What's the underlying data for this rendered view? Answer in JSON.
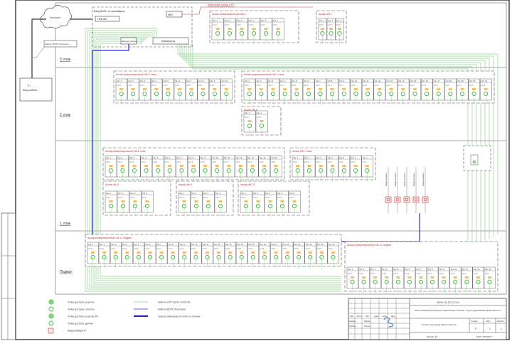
{
  "floors": [
    "3 этаж",
    "2 этаж",
    "1 этаж",
    "Подвал"
  ],
  "internet": "Интернет",
  "substation": {
    "title": "ТП",
    "subtitle": "Ввод кабеля"
  },
  "cable_note": "Кабель ВОЛС 8 волокон",
  "input_box": {
    "title": "Ввод ВОЛС от провайдера",
    "odf": "ОКБ-8М",
    "router": "Маршрутизатор",
    "switch": "Коммутатор",
    "ups": "ИБП"
  },
  "top_note": "Кабельная трасса к РУ",
  "racks": [
    {
      "title": "Шкаф коммутационный ШК-1",
      "ports": 6
    },
    {
      "title": "Шкаф ШК-2",
      "ports": 3
    },
    {
      "title": "Шкаф коммутационный ШК-3 этаж",
      "ports": 10
    },
    {
      "title": "Шкаф коммутационный ШК-4 этаж",
      "ports": 21
    },
    {
      "title": "Шкаф ШК-5",
      "ports": 2
    },
    {
      "title": "Шкаф коммутационный ШК-6 этаж",
      "ports": 15
    },
    {
      "title": "Шкаф ШК-7 этаж",
      "ports": 7
    },
    {
      "title": "Шкаф ШК-8",
      "ports": 4
    },
    {
      "title": "Шкаф ШК-9",
      "ports": 4
    },
    {
      "title": "Шкаф ШК-10",
      "ports": 5
    },
    {
      "title": "Шкаф коммутационный ШК-11 подвал",
      "ports": 22
    },
    {
      "title": "Шкаф коммутационный ШК-12 подвал",
      "ports": 13
    }
  ],
  "port_label": "Сет.",
  "port_value": "2x2,5",
  "cameras": {
    "count": 5,
    "label": "Видеокамера"
  },
  "legend": [
    {
      "icon": "socket-icon",
      "text": "Точка доступа, розетка"
    },
    {
      "icon": "socket-round-icon",
      "text": "Точка доступа, потолок"
    },
    {
      "icon": "socket-filled-icon",
      "text": "Точка доступа, розетка ТВ"
    },
    {
      "icon": "socket-small-icon",
      "text": "Точка доступа, датчик"
    },
    {
      "icon": "camera-icon",
      "text": "Видеокамера IP"
    }
  ],
  "legend_lines": [
    {
      "color": "#8fd48f",
      "text": "Кабель UTP cat.5e 4x2x0,52"
    },
    {
      "color": "#3333cc",
      "text": "Кабель ВОЛС 8 волокон"
    },
    {
      "color": "#2222aa",
      "text": "Трасса кабельная в лотке по стенам"
    }
  ],
  "title_block": {
    "code": "БРН-15-22-СС10",
    "project": "Многоэтажный жилой дом. Слаботочные системы. Структурированная кабельная сеть",
    "sheet_title": "Схема структурная кабельной сети",
    "stage_h": "Стадия",
    "sheet_h": "Лист",
    "sheets_h": "Листов",
    "stage": "Р",
    "sheet": "1",
    "sheets": "1",
    "format": "Формат А3",
    "org": "ООО \"ПРОЕКТ\"",
    "headers": [
      "Изм.",
      "Кол.уч",
      "Лист",
      "№док",
      "Подп.",
      "Дата"
    ],
    "people": [
      [
        "Разраб.",
        "Иванов"
      ],
      [
        "Провер.",
        "Петров"
      ]
    ]
  },
  "colors": {
    "green": "#8fd48f",
    "blue": "#2b2bd0",
    "red": "#cc3333",
    "frame": "#555555"
  }
}
